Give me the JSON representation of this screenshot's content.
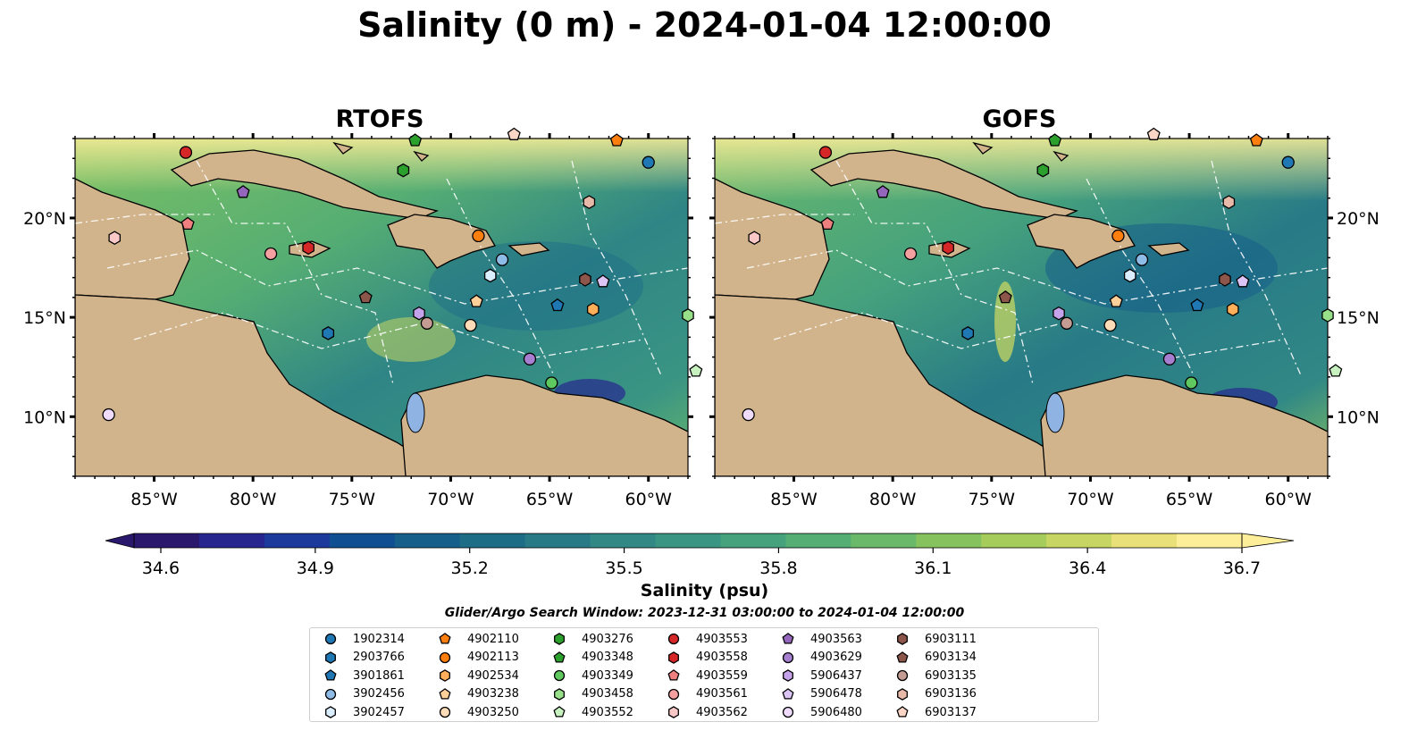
{
  "title": "Salinity (0 m) - 2024-01-04 12:00:00",
  "panels": [
    {
      "name": "rtofs",
      "title": "RTOFS"
    },
    {
      "name": "gofs",
      "title": "GOFS"
    }
  ],
  "map_extent": {
    "lon_min": -89,
    "lon_max": -58,
    "lat_min": 7,
    "lat_max": 24
  },
  "lon_ticks": [
    {
      "value": -85,
      "label": "85°W"
    },
    {
      "value": -80,
      "label": "80°W"
    },
    {
      "value": -75,
      "label": "75°W"
    },
    {
      "value": -70,
      "label": "70°W"
    },
    {
      "value": -65,
      "label": "65°W"
    },
    {
      "value": -60,
      "label": "60°W"
    }
  ],
  "lat_ticks": [
    {
      "value": 20,
      "label": "20°N"
    },
    {
      "value": 15,
      "label": "15°N"
    },
    {
      "value": 10,
      "label": "10°N"
    }
  ],
  "colorbar": {
    "label": "Salinity (psu)",
    "min": 34.6,
    "max": 36.7,
    "extend": "both",
    "ticks": [
      {
        "value": 34.6,
        "label": "34.6"
      },
      {
        "value": 34.9,
        "label": "34.9"
      },
      {
        "value": 35.2,
        "label": "35.2"
      },
      {
        "value": 35.5,
        "label": "35.5"
      },
      {
        "value": 35.8,
        "label": "35.8"
      },
      {
        "value": 36.1,
        "label": "36.1"
      },
      {
        "value": 36.4,
        "label": "36.4"
      },
      {
        "value": 36.7,
        "label": "36.7"
      }
    ],
    "colormap": "haline",
    "colors": [
      "#2a186c",
      "#27268f",
      "#1b3a9c",
      "#0f4f92",
      "#165f8a",
      "#1e6d87",
      "#287a86",
      "#318885",
      "#3a9583",
      "#46a27d",
      "#55ae74",
      "#6ab96a",
      "#86c35f",
      "#a6cd5b",
      "#c7d662",
      "#eae07a",
      "#fdee99"
    ]
  },
  "search_window": "Glider/Argo Search Window: 2023-12-31 03:00:00 to 2024-01-04 12:00:00",
  "land_color": "#d2b48c",
  "legend": [
    {
      "label": "1902314",
      "marker": "circle",
      "color": "#1f77b4"
    },
    {
      "label": "2903766",
      "marker": "hexagon",
      "color": "#1f77b4"
    },
    {
      "label": "3901861",
      "marker": "pentagon",
      "color": "#1f77b4"
    },
    {
      "label": "3902456",
      "marker": "circle",
      "color": "#8fbce6"
    },
    {
      "label": "3902457",
      "marker": "hexagon",
      "color": "#dbeeff"
    },
    {
      "label": "4902110",
      "marker": "pentagon",
      "color": "#ff7f0e"
    },
    {
      "label": "4902113",
      "marker": "circle",
      "color": "#ff7f0e"
    },
    {
      "label": "4902534",
      "marker": "hexagon",
      "color": "#ffae5a"
    },
    {
      "label": "4903238",
      "marker": "pentagon",
      "color": "#ffcf99"
    },
    {
      "label": "4903250",
      "marker": "circle",
      "color": "#ffdcb8"
    },
    {
      "label": "4903276",
      "marker": "hexagon",
      "color": "#2ca02c"
    },
    {
      "label": "4903348",
      "marker": "pentagon",
      "color": "#2ca02c"
    },
    {
      "label": "4903349",
      "marker": "circle",
      "color": "#5fc95f"
    },
    {
      "label": "4903458",
      "marker": "hexagon",
      "color": "#98df8a"
    },
    {
      "label": "4903552",
      "marker": "pentagon",
      "color": "#c7f2c0"
    },
    {
      "label": "4903553",
      "marker": "circle",
      "color": "#d62728"
    },
    {
      "label": "4903558",
      "marker": "hexagon",
      "color": "#d62728"
    },
    {
      "label": "4903559",
      "marker": "pentagon",
      "color": "#f08080"
    },
    {
      "label": "4903561",
      "marker": "circle",
      "color": "#f4a0a0"
    },
    {
      "label": "4903562",
      "marker": "hexagon",
      "color": "#fbc8c8"
    },
    {
      "label": "4903563",
      "marker": "pentagon",
      "color": "#9467bd"
    },
    {
      "label": "4903629",
      "marker": "circle",
      "color": "#a77fd1"
    },
    {
      "label": "5906437",
      "marker": "hexagon",
      "color": "#c5a3ea"
    },
    {
      "label": "5906478",
      "marker": "pentagon",
      "color": "#dcc4f5"
    },
    {
      "label": "5906480",
      "marker": "circle",
      "color": "#efdbfc"
    },
    {
      "label": "6903111",
      "marker": "hexagon",
      "color": "#8c564b"
    },
    {
      "label": "6903134",
      "marker": "pentagon",
      "color": "#8c564b"
    },
    {
      "label": "6903135",
      "marker": "circle",
      "color": "#c49c94"
    },
    {
      "label": "6903136",
      "marker": "hexagon",
      "color": "#e7b9a8"
    },
    {
      "label": "6903137",
      "marker": "pentagon",
      "color": "#fbd5c5"
    }
  ],
  "floats": [
    {
      "id": "1902314",
      "lon": -60.0,
      "lat": 22.8
    },
    {
      "id": "2903766",
      "lon": -76.2,
      "lat": 14.2
    },
    {
      "id": "3901861",
      "lon": -64.6,
      "lat": 15.6
    },
    {
      "id": "3902456",
      "lon": -67.4,
      "lat": 17.9
    },
    {
      "id": "3902457",
      "lon": -68.0,
      "lat": 17.1
    },
    {
      "id": "4902110",
      "lon": -61.6,
      "lat": 23.9
    },
    {
      "id": "4902113",
      "lon": -68.6,
      "lat": 19.1
    },
    {
      "id": "4902534",
      "lon": -62.8,
      "lat": 15.4
    },
    {
      "id": "4903238",
      "lon": -68.7,
      "lat": 15.8
    },
    {
      "id": "4903250",
      "lon": -69.0,
      "lat": 14.6
    },
    {
      "id": "4903276",
      "lon": -72.4,
      "lat": 22.4
    },
    {
      "id": "4903348",
      "lon": -71.8,
      "lat": 23.9
    },
    {
      "id": "4903349",
      "lon": -64.9,
      "lat": 11.7
    },
    {
      "id": "4903458",
      "lon": -58.0,
      "lat": 15.1
    },
    {
      "id": "4903552",
      "lon": -57.6,
      "lat": 12.3
    },
    {
      "id": "4903553",
      "lon": -83.4,
      "lat": 23.3
    },
    {
      "id": "4903558",
      "lon": -77.2,
      "lat": 18.5
    },
    {
      "id": "4903559",
      "lon": -83.3,
      "lat": 19.7
    },
    {
      "id": "4903561",
      "lon": -79.1,
      "lat": 18.2
    },
    {
      "id": "4903562",
      "lon": -87.0,
      "lat": 19.0
    },
    {
      "id": "4903563",
      "lon": -80.5,
      "lat": 21.3
    },
    {
      "id": "4903629",
      "lon": -66.0,
      "lat": 12.9
    },
    {
      "id": "5906437",
      "lon": -71.6,
      "lat": 15.2
    },
    {
      "id": "5906478",
      "lon": -62.3,
      "lat": 16.8
    },
    {
      "id": "5906480",
      "lon": -87.3,
      "lat": 10.1
    },
    {
      "id": "6903111",
      "lon": -63.2,
      "lat": 16.9
    },
    {
      "id": "6903134",
      "lon": -74.3,
      "lat": 16.0
    },
    {
      "id": "6903135",
      "lon": -71.2,
      "lat": 14.7
    },
    {
      "id": "6903136",
      "lon": -63.0,
      "lat": 20.8
    },
    {
      "id": "6903137",
      "lon": -66.8,
      "lat": 24.2
    }
  ]
}
